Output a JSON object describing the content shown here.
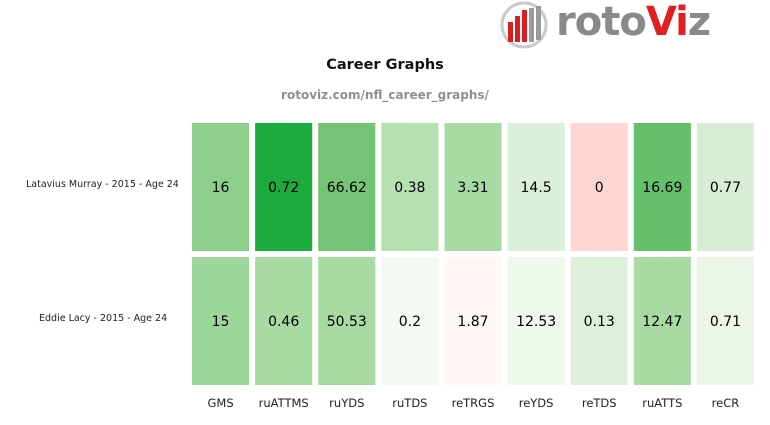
{
  "logo": {
    "text_main": "roto",
    "text_accent": "Vi",
    "text_end": "z"
  },
  "chart_data": {
    "type": "heatmap",
    "title": "Career Graphs",
    "subtitle": "rotoviz.com/nfl_career_graphs/",
    "rows": [
      "Latavius Murray - 2015 - Age 24",
      "Eddie Lacy - 2015 - Age 24"
    ],
    "columns": [
      "GMS",
      "ruATTMS",
      "ruYDS",
      "ruTDS",
      "reTRGS",
      "reYDS",
      "reTDS",
      "ruATTS",
      "reCR"
    ],
    "values": [
      [
        "16",
        "0.72",
        "66.62",
        "0.38",
        "3.31",
        "14.5",
        "0",
        "16.69",
        "0.77"
      ],
      [
        "15",
        "0.46",
        "50.53",
        "0.2",
        "1.87",
        "12.53",
        "0.13",
        "12.47",
        "0.71"
      ]
    ],
    "cell_colors": [
      [
        "#8ccf8c",
        "#1dab3e",
        "#75c475",
        "#b5e1b0",
        "#a7dba3",
        "#dbf0d8",
        "#ffd6d1",
        "#66bf6a",
        "#d7eed4"
      ],
      [
        "#9dd69a",
        "#a8dba4",
        "#a6daa2",
        "#f4faf2",
        "#fff7f6",
        "#eef8ec",
        "#ddf1da",
        "#a8dba4",
        "#ebf6e8"
      ]
    ]
  }
}
